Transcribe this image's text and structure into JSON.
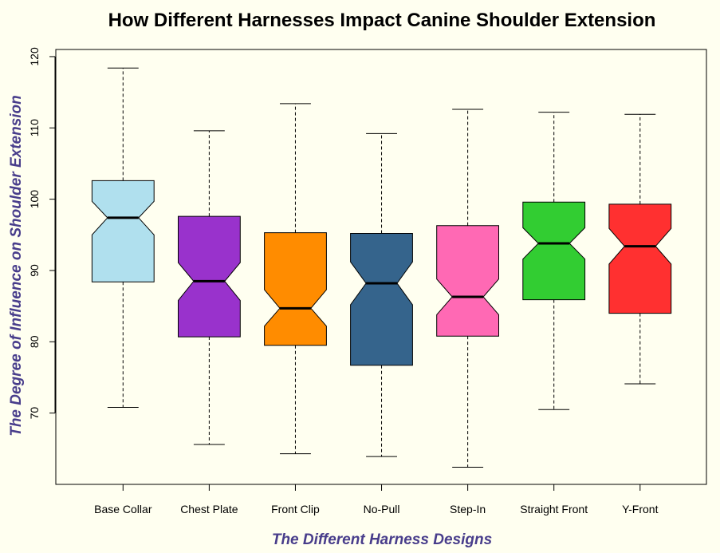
{
  "chart_data": {
    "type": "boxplot",
    "title": "How Different Harnesses Impact Canine Shoulder Extension",
    "xlabel": "The Different Harness Designs",
    "ylabel": "The Degree of Influence on Shoulder Extension",
    "ylim": [
      60,
      121
    ],
    "yticks": [
      70,
      80,
      90,
      100,
      110,
      120
    ],
    "notched": true,
    "background": "#FFFFF0",
    "boxes": [
      {
        "category": "Base Collar",
        "min": 70.8,
        "q1": 88.4,
        "median": 97.4,
        "q3": 102.6,
        "max": 118.4,
        "notch_low": 95.0,
        "notch_high": 99.7,
        "color": "#B0E0EE"
      },
      {
        "category": "Chest Plate",
        "min": 65.6,
        "q1": 80.7,
        "median": 88.5,
        "q3": 97.6,
        "max": 109.6,
        "notch_low": 85.8,
        "notch_high": 91.1,
        "color": "#9932CC"
      },
      {
        "category": "Front Clip",
        "min": 64.3,
        "q1": 79.5,
        "median": 84.7,
        "q3": 95.3,
        "max": 113.4,
        "notch_low": 82.2,
        "notch_high": 87.3,
        "color": "#FF8C00"
      },
      {
        "category": "No-Pull",
        "min": 63.9,
        "q1": 76.7,
        "median": 88.2,
        "q3": 95.2,
        "max": 109.2,
        "notch_low": 85.2,
        "notch_high": 91.2,
        "color": "#35648C"
      },
      {
        "category": "Step-In",
        "min": 62.4,
        "q1": 80.8,
        "median": 86.3,
        "q3": 96.3,
        "max": 112.6,
        "notch_low": 83.8,
        "notch_high": 88.8,
        "color": "#FF69B4"
      },
      {
        "category": "Straight Front",
        "min": 70.5,
        "q1": 85.9,
        "median": 93.8,
        "q3": 99.6,
        "max": 112.2,
        "notch_low": 91.6,
        "notch_high": 96.0,
        "color": "#32CD32"
      },
      {
        "category": "Y-Front",
        "min": 74.1,
        "q1": 84.0,
        "median": 93.4,
        "q3": 99.3,
        "max": 111.9,
        "notch_low": 90.9,
        "notch_high": 95.9,
        "color": "#FF3030"
      }
    ]
  }
}
